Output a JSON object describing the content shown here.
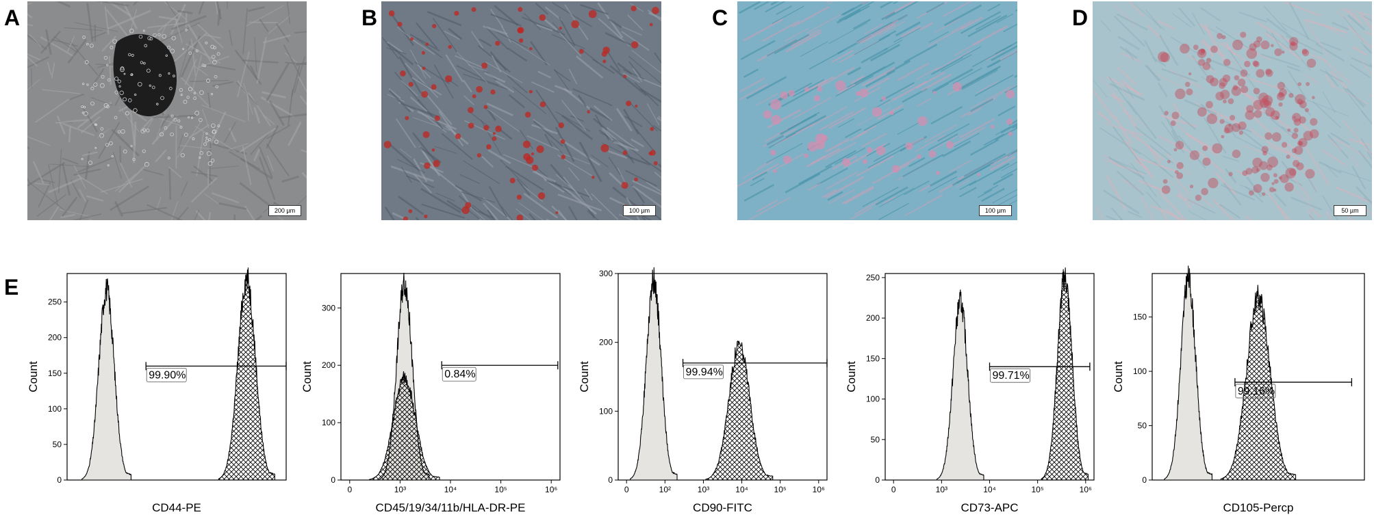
{
  "panel_letters": {
    "A": "A",
    "B": "B",
    "C": "C",
    "D": "D",
    "E": "E"
  },
  "micrographs": [
    {
      "id": "A",
      "scale_label": "200 µm",
      "stain": "phase-contrast",
      "palette": [
        "#8a8c8e",
        "#6f7173",
        "#a6a8aa"
      ]
    },
    {
      "id": "B",
      "scale_label": "100 µm",
      "stain": "oil-red-o",
      "palette": [
        "#6f7a86",
        "#4f5a66",
        "#9aa3ad"
      ],
      "accent": "#c0261f"
    },
    {
      "id": "C",
      "scale_label": "100 µm",
      "stain": "alcian-blue",
      "palette": [
        "#7fb1c6",
        "#3f8fa6",
        "#c9a0b8"
      ],
      "accent": "#d48fb0"
    },
    {
      "id": "D",
      "scale_label": "50 µm",
      "stain": "alizarin-red",
      "palette": [
        "#a9c3cc",
        "#8fb0bc",
        "#d9b3bd"
      ],
      "accent": "#c24a58"
    }
  ],
  "chart_data": [
    {
      "type": "histogram",
      "xlabel": "CD44-PE",
      "ylabel": "Count",
      "scale": "linear",
      "ylim": [
        0,
        290
      ],
      "yticks": [
        0,
        50,
        100,
        150,
        200,
        250
      ],
      "xticks": [],
      "series": [
        {
          "role": "control",
          "peak_x": 0.18,
          "peak_count": 268,
          "width": 0.035
        },
        {
          "role": "stained",
          "peak_x": 0.82,
          "peak_count": 283,
          "width": 0.04
        }
      ],
      "gate": {
        "from": 0.36,
        "to": 1.0,
        "count": 160,
        "percent": "99.90%"
      }
    },
    {
      "type": "histogram",
      "xlabel": "CD45/19/34/11b/HLA-DR-PE",
      "ylabel": "Count",
      "scale": "log",
      "ylim": [
        0,
        360
      ],
      "yticks": [
        0,
        100,
        200,
        300
      ],
      "xticks": [
        "0",
        "10³",
        "10⁴",
        "10⁵",
        "10⁶"
      ],
      "series": [
        {
          "role": "control",
          "peak_x": 0.29,
          "peak_count": 345,
          "width": 0.035
        },
        {
          "role": "stained",
          "peak_x": 0.29,
          "peak_count": 178,
          "width": 0.05
        }
      ],
      "gate": {
        "from": 0.46,
        "to": 0.99,
        "count": 200,
        "percent": "0.84%"
      }
    },
    {
      "type": "histogram",
      "xlabel": "CD90-FITC",
      "ylabel": "Count",
      "scale": "log",
      "ylim": [
        0,
        300
      ],
      "yticks": [
        0,
        100,
        200,
        300
      ],
      "xticks": [
        "0",
        "10²",
        "10³",
        "10⁴",
        "10⁵",
        "10⁶"
      ],
      "series": [
        {
          "role": "control",
          "peak_x": 0.17,
          "peak_count": 290,
          "width": 0.035
        },
        {
          "role": "stained",
          "peak_x": 0.58,
          "peak_count": 196,
          "width": 0.05
        }
      ],
      "gate": {
        "from": 0.31,
        "to": 1.0,
        "count": 170,
        "percent": "99.94%"
      }
    },
    {
      "type": "histogram",
      "xlabel": "CD73-APC",
      "ylabel": "Count",
      "scale": "log",
      "ylim": [
        0,
        255
      ],
      "yticks": [
        0,
        50,
        100,
        150,
        200,
        250
      ],
      "xticks": [
        "0",
        "10³",
        "10⁴",
        "10⁵",
        "10⁶"
      ],
      "series": [
        {
          "role": "control",
          "peak_x": 0.36,
          "peak_count": 220,
          "width": 0.035
        },
        {
          "role": "stained",
          "peak_x": 0.86,
          "peak_count": 250,
          "width": 0.035
        }
      ],
      "gate": {
        "from": 0.5,
        "to": 0.98,
        "count": 140,
        "percent": "99.71%"
      }
    },
    {
      "type": "histogram",
      "xlabel": "CD105-Percp",
      "ylabel": "Count",
      "scale": "linear",
      "ylim": [
        0,
        190
      ],
      "yticks": [
        0,
        50,
        100,
        150
      ],
      "xticks": [],
      "series": [
        {
          "role": "control",
          "peak_x": 0.17,
          "peak_count": 185,
          "width": 0.035
        },
        {
          "role": "stained",
          "peak_x": 0.5,
          "peak_count": 168,
          "width": 0.055
        }
      ],
      "gate": {
        "from": 0.39,
        "to": 0.94,
        "count": 90,
        "percent": "99.16%"
      }
    }
  ]
}
